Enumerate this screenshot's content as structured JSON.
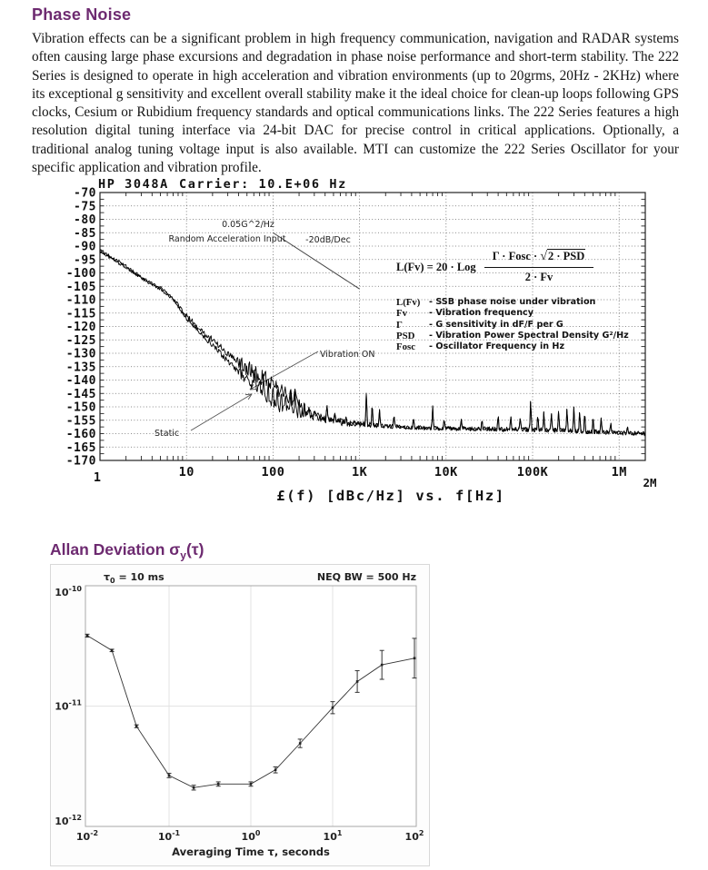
{
  "page": {
    "background": "#ffffff",
    "accent_color": "#6d2a70"
  },
  "intro": {
    "heading": "Phase Noise",
    "body": "Vibration effects can be a significant problem in high frequency communication, navigation and RADAR systems often causing large phase excursions and degradation in phase noise performance and short-term stability.  The 222 Series is designed to operate in high acceleration and vibration environments (up to 20grms, 20Hz - 2KHz) where its exceptional g sensitivity and excellent overall stability make it the ideal choice for clean-up loops following GPS clocks, Cesium or Rubidium frequency standards and optical communications links.  The 222 Series features a high resolution digital tuning interface via 24-bit DAC for precise control in critical applications. Optionally, a traditional analog tuning voltage input is also available. MTI can customize the 222 Series Oscillator for your specific application and vibration profile."
  },
  "allan_section": {
    "heading_pre": "Allan Deviation ",
    "heading_sigma": "σ",
    "heading_sub": "y",
    "heading_post": "(τ)"
  },
  "chart_data": [
    {
      "id": "phase-noise",
      "type": "line",
      "title_left": "HP 3048A",
      "title_right": "Carrier: 10.E+06 Hz",
      "caption": "£(f) [dBc/Hz] vs. f[Hz]",
      "x_scale": "log",
      "xlim": [
        1,
        2000000
      ],
      "ylim": [
        -170,
        -70
      ],
      "y_tick_step": 5,
      "grid": "dotted",
      "x_ticks": [
        {
          "f": 1,
          "label": "1"
        },
        {
          "f": 10,
          "label": "10"
        },
        {
          "f": 100,
          "label": "100"
        },
        {
          "f": 1000,
          "label": "1K"
        },
        {
          "f": 10000,
          "label": "10K"
        },
        {
          "f": 100000,
          "label": "100K"
        },
        {
          "f": 1000000,
          "label": "1M"
        },
        {
          "f": 2000000,
          "label": "2M"
        }
      ],
      "series": [
        {
          "name": "Static",
          "anchors": [
            [
              1,
              -92
            ],
            [
              1.5,
              -95.5
            ],
            [
              2,
              -98
            ],
            [
              3,
              -102
            ],
            [
              4,
              -104.5
            ],
            [
              5,
              -106
            ],
            [
              7,
              -110
            ],
            [
              10,
              -117
            ],
            [
              14,
              -122
            ],
            [
              20,
              -127
            ],
            [
              30,
              -133
            ],
            [
              45,
              -138.5
            ],
            [
              60,
              -142
            ],
            [
              80,
              -146
            ],
            [
              100,
              -149
            ],
            [
              140,
              -151
            ],
            [
              200,
              -152.5
            ],
            [
              300,
              -154
            ],
            [
              500,
              -155.5
            ],
            [
              800,
              -156.5
            ],
            [
              1500,
              -157
            ],
            [
              3000,
              -157.5
            ],
            [
              7000,
              -158
            ],
            [
              15000,
              -158.2
            ],
            [
              40000,
              -158.5
            ],
            [
              100000,
              -158.5
            ],
            [
              300000,
              -159
            ],
            [
              700000,
              -159.5
            ],
            [
              2000000,
              -160
            ]
          ]
        },
        {
          "name": "Vibration ON",
          "anchors": [
            [
              1,
              -91.5
            ],
            [
              1.5,
              -95
            ],
            [
              2,
              -97.5
            ],
            [
              3,
              -101.5
            ],
            [
              4,
              -104
            ],
            [
              5,
              -105.5
            ],
            [
              7,
              -109.5
            ],
            [
              10,
              -116
            ],
            [
              14,
              -121
            ],
            [
              20,
              -125
            ],
            [
              30,
              -130
            ],
            [
              45,
              -134
            ],
            [
              60,
              -137
            ],
            [
              80,
              -139.5
            ],
            [
              100,
              -141.5
            ],
            [
              130,
              -144
            ],
            [
              170,
              -147.5
            ],
            [
              220,
              -150.5
            ],
            [
              300,
              -153
            ],
            [
              500,
              -155
            ],
            [
              800,
              -156
            ],
            [
              1500,
              -156.5
            ],
            [
              3000,
              -157.5
            ],
            [
              7000,
              -157.8
            ],
            [
              15000,
              -158
            ],
            [
              40000,
              -158.2
            ],
            [
              100000,
              -158.5
            ],
            [
              300000,
              -159
            ],
            [
              700000,
              -159.5
            ],
            [
              2000000,
              -160
            ]
          ]
        }
      ],
      "spurs": [
        [
          62,
          -136.5
        ],
        [
          70,
          -139
        ],
        [
          78,
          -137.5
        ],
        [
          88,
          -139
        ],
        [
          100,
          -140.5
        ],
        [
          112,
          -142
        ],
        [
          125,
          -143.5
        ],
        [
          140,
          -144.5
        ],
        [
          160,
          -143
        ],
        [
          180,
          -142.5
        ],
        [
          200,
          -147
        ],
        [
          230,
          -148.5
        ],
        [
          260,
          -150
        ],
        [
          300,
          -151
        ],
        [
          420,
          -148.5
        ],
        [
          520,
          -152
        ],
        [
          700,
          -153.5
        ],
        [
          1200,
          -143.5
        ],
        [
          1400,
          -147.5
        ],
        [
          1700,
          -150.5
        ],
        [
          2500,
          -152.5
        ],
        [
          4200,
          -153.5
        ],
        [
          7000,
          -149.5
        ],
        [
          9500,
          -154
        ],
        [
          15000,
          -154.5
        ],
        [
          26000,
          -154
        ],
        [
          40000,
          -152.5
        ],
        [
          56000,
          -153
        ],
        [
          72000,
          -153.5
        ],
        [
          95000,
          -146.5
        ],
        [
          115000,
          -152
        ],
        [
          135000,
          -151.5
        ],
        [
          165000,
          -152
        ],
        [
          200000,
          -150.5
        ],
        [
          250000,
          -149.5
        ],
        [
          300000,
          -150
        ],
        [
          350000,
          -150.5
        ],
        [
          400000,
          -151
        ],
        [
          500000,
          -152.5
        ],
        [
          620000,
          -154
        ],
        [
          800000,
          -155.5
        ],
        [
          1250000,
          -157
        ]
      ],
      "psd_line": {
        "from_hz": 100,
        "from_db": -85,
        "to_hz": 1000,
        "to_db": -106
      },
      "annotations": {
        "psd_label": "0.05G^2/Hz",
        "accel_label": "Random Acceleration Input",
        "slope_label": "-20dB/Dec",
        "vibration_label": "Vibration ON",
        "static_label": "Static"
      },
      "formula": {
        "lhs": "L(Fv) = 20 · Log",
        "numerator_pre": "Γ · Fosc · ",
        "radical": "√",
        "radicand": "2 · PSD",
        "denominator": "2 · Fv",
        "legend": [
          {
            "sym": "L(Fv)",
            "desc": "- SSB phase noise under vibration"
          },
          {
            "sym": "Fv",
            "desc": "- Vibration frequency"
          },
          {
            "sym": "Γ",
            "desc": "- G sensitivity in dF/F per G"
          },
          {
            "sym": "PSD",
            "desc": "- Vibration Power Spectral Density G²/Hz"
          },
          {
            "sym": "Fosc",
            "desc": "- Oscillator Frequency in Hz"
          }
        ]
      }
    },
    {
      "id": "allan-deviation",
      "type": "line",
      "xlabel": "Averaging Time τ, seconds",
      "annotation_left_pre": "τ",
      "annotation_left_sub": "0",
      "annotation_left_post": " = 10 ms",
      "annotation_right": "NEQ BW = 500 Hz",
      "x_scale": "log",
      "y_scale": "log",
      "xlim": [
        0.01,
        100
      ],
      "ylim": [
        1e-12,
        1e-10
      ],
      "x_ticks": [
        {
          "v": 0.01,
          "b": "10",
          "e": "-2"
        },
        {
          "v": 0.1,
          "b": "10",
          "e": "-1"
        },
        {
          "v": 1,
          "b": "10",
          "e": "0"
        },
        {
          "v": 10,
          "b": "10",
          "e": "1"
        },
        {
          "v": 100,
          "b": "10",
          "e": "2"
        }
      ],
      "y_ticks": [
        {
          "v": 1e-10,
          "b": "10",
          "e": "-10"
        },
        {
          "v": 1e-11,
          "b": "10",
          "e": "-11"
        },
        {
          "v": 1e-12,
          "b": "10",
          "e": "-12"
        }
      ],
      "points": [
        {
          "tau": 0.01,
          "adev": 3.85e-11,
          "err": 0.012
        },
        {
          "tau": 0.02,
          "adev": 2.9e-11,
          "err": 0.01
        },
        {
          "tau": 0.04,
          "adev": 6.8e-12,
          "err": 0.012
        },
        {
          "tau": 0.1,
          "adev": 2.65e-12,
          "err": 0.018
        },
        {
          "tau": 0.2,
          "adev": 2.1e-12,
          "err": 0.02
        },
        {
          "tau": 0.4,
          "adev": 2.25e-12,
          "err": 0.018
        },
        {
          "tau": 1,
          "adev": 2.25e-12,
          "err": 0.018
        },
        {
          "tau": 2,
          "adev": 2.95e-12,
          "err": 0.025
        },
        {
          "tau": 4,
          "adev": 4.9e-12,
          "err": 0.035
        },
        {
          "tau": 10,
          "adev": 9.7e-12,
          "err": 0.05
        },
        {
          "tau": 20,
          "adev": 1.6e-11,
          "err": 0.09
        },
        {
          "tau": 40,
          "adev": 2.2e-11,
          "err": 0.12
        },
        {
          "tau": 100,
          "adev": 2.5e-11,
          "err": 0.165
        }
      ]
    }
  ]
}
